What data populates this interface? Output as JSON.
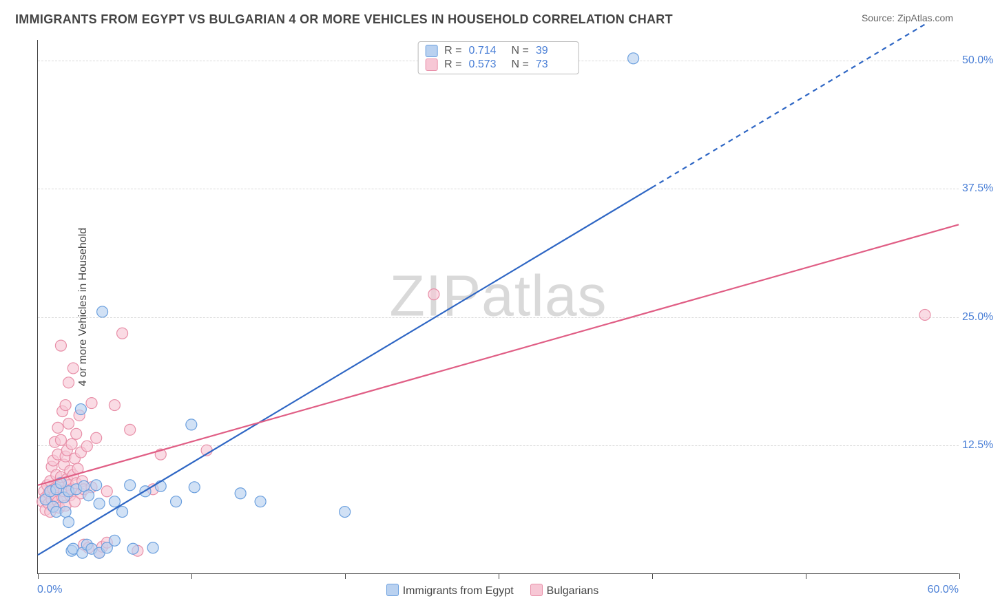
{
  "title": "IMMIGRANTS FROM EGYPT VS BULGARIAN 4 OR MORE VEHICLES IN HOUSEHOLD CORRELATION CHART",
  "source_prefix": "Source: ",
  "source_link": "ZipAtlas.com",
  "ylabel": "4 or more Vehicles in Household",
  "watermark": "ZIPatlas",
  "chart": {
    "type": "scatter",
    "xlim": [
      0,
      60
    ],
    "ylim": [
      0,
      52
    ],
    "x_label_min": "0.0%",
    "x_label_max": "60.0%",
    "x_tick_positions": [
      0,
      10,
      20,
      30,
      40,
      50,
      60
    ],
    "y_gridlines": [
      12.5,
      25.0,
      37.5,
      50.0
    ],
    "y_labels": [
      "12.5%",
      "25.0%",
      "37.5%",
      "50.0%"
    ],
    "grid_color": "#d9d9d9",
    "axis_color": "#444444",
    "tick_label_color": "#4a7fd6",
    "marker_radius": 8,
    "marker_stroke_width": 1.2,
    "series": [
      {
        "name": "Immigrants from Egypt",
        "fill": "#b9d1f0",
        "stroke": "#6a9fde",
        "fill_opacity": 0.65,
        "R": "0.714",
        "N": "39",
        "regression": {
          "x1": 0,
          "y1": 1.8,
          "x2": 40,
          "y2": 37.6,
          "dash_after_x": 40,
          "dash_end_x": 58,
          "dash_end_y": 53.7,
          "color": "#2e66c4",
          "width": 2.2
        },
        "points": [
          [
            0.5,
            7.2
          ],
          [
            0.8,
            8.0
          ],
          [
            1.0,
            6.5
          ],
          [
            1.2,
            8.2
          ],
          [
            1.2,
            6.0
          ],
          [
            1.5,
            8.8
          ],
          [
            1.7,
            7.4
          ],
          [
            1.8,
            6.0
          ],
          [
            2.0,
            8.0
          ],
          [
            2.0,
            5.0
          ],
          [
            2.2,
            2.2
          ],
          [
            2.3,
            2.4
          ],
          [
            2.5,
            8.2
          ],
          [
            2.8,
            16.0
          ],
          [
            2.9,
            2.0
          ],
          [
            3.0,
            8.5
          ],
          [
            3.2,
            2.8
          ],
          [
            3.3,
            7.6
          ],
          [
            3.5,
            2.4
          ],
          [
            3.8,
            8.6
          ],
          [
            4.0,
            2.0
          ],
          [
            4.0,
            6.8
          ],
          [
            4.2,
            25.5
          ],
          [
            4.5,
            2.5
          ],
          [
            5.0,
            7.0
          ],
          [
            5.0,
            3.2
          ],
          [
            5.5,
            6.0
          ],
          [
            6.0,
            8.6
          ],
          [
            6.2,
            2.4
          ],
          [
            7.0,
            8.0
          ],
          [
            7.5,
            2.5
          ],
          [
            8.0,
            8.5
          ],
          [
            9.0,
            7.0
          ],
          [
            10.0,
            14.5
          ],
          [
            10.2,
            8.4
          ],
          [
            13.2,
            7.8
          ],
          [
            14.5,
            7.0
          ],
          [
            20.0,
            6.0
          ],
          [
            38.8,
            50.2
          ]
        ]
      },
      {
        "name": "Bulgarians",
        "fill": "#f7c7d5",
        "stroke": "#e88fa8",
        "fill_opacity": 0.65,
        "R": "0.573",
        "N": "73",
        "regression": {
          "x1": 0,
          "y1": 8.6,
          "x2": 60,
          "y2": 34.0,
          "color": "#e05e85",
          "width": 2.2
        },
        "points": [
          [
            0.3,
            7.0
          ],
          [
            0.4,
            8.0
          ],
          [
            0.5,
            6.2
          ],
          [
            0.5,
            7.4
          ],
          [
            0.6,
            8.6
          ],
          [
            0.7,
            6.8
          ],
          [
            0.7,
            7.8
          ],
          [
            0.8,
            9.0
          ],
          [
            0.8,
            6.0
          ],
          [
            0.9,
            10.4
          ],
          [
            0.9,
            7.2
          ],
          [
            1.0,
            8.2
          ],
          [
            1.0,
            11.0
          ],
          [
            1.0,
            6.5
          ],
          [
            1.1,
            7.6
          ],
          [
            1.1,
            12.8
          ],
          [
            1.2,
            8.4
          ],
          [
            1.2,
            9.6
          ],
          [
            1.3,
            7.0
          ],
          [
            1.3,
            11.6
          ],
          [
            1.3,
            14.2
          ],
          [
            1.4,
            8.8
          ],
          [
            1.4,
            6.4
          ],
          [
            1.5,
            9.4
          ],
          [
            1.5,
            13.0
          ],
          [
            1.5,
            22.2
          ],
          [
            1.6,
            7.4
          ],
          [
            1.6,
            15.8
          ],
          [
            1.7,
            10.6
          ],
          [
            1.7,
            8.0
          ],
          [
            1.8,
            11.4
          ],
          [
            1.8,
            16.4
          ],
          [
            1.8,
            6.6
          ],
          [
            1.9,
            9.2
          ],
          [
            1.9,
            12.0
          ],
          [
            2.0,
            8.6
          ],
          [
            2.0,
            18.6
          ],
          [
            2.0,
            14.6
          ],
          [
            2.1,
            7.6
          ],
          [
            2.1,
            10.0
          ],
          [
            2.2,
            12.6
          ],
          [
            2.2,
            8.2
          ],
          [
            2.3,
            20.0
          ],
          [
            2.3,
            9.6
          ],
          [
            2.4,
            11.2
          ],
          [
            2.4,
            7.0
          ],
          [
            2.5,
            13.6
          ],
          [
            2.5,
            8.8
          ],
          [
            2.6,
            10.2
          ],
          [
            2.7,
            15.4
          ],
          [
            2.8,
            7.8
          ],
          [
            2.8,
            11.8
          ],
          [
            2.9,
            9.0
          ],
          [
            3.0,
            8.2
          ],
          [
            3.0,
            2.8
          ],
          [
            3.2,
            12.4
          ],
          [
            3.3,
            2.5
          ],
          [
            3.5,
            8.4
          ],
          [
            3.5,
            16.6
          ],
          [
            3.8,
            13.2
          ],
          [
            4.0,
            2.0
          ],
          [
            4.2,
            2.6
          ],
          [
            4.5,
            8.0
          ],
          [
            4.5,
            3.0
          ],
          [
            5.0,
            16.4
          ],
          [
            5.5,
            23.4
          ],
          [
            6.0,
            14.0
          ],
          [
            6.5,
            2.2
          ],
          [
            7.5,
            8.2
          ],
          [
            8.0,
            11.6
          ],
          [
            11.0,
            12.0
          ],
          [
            25.8,
            27.2
          ],
          [
            57.8,
            25.2
          ]
        ]
      }
    ]
  },
  "top_legend": {
    "r_label": "R =",
    "n_label": "N ="
  }
}
